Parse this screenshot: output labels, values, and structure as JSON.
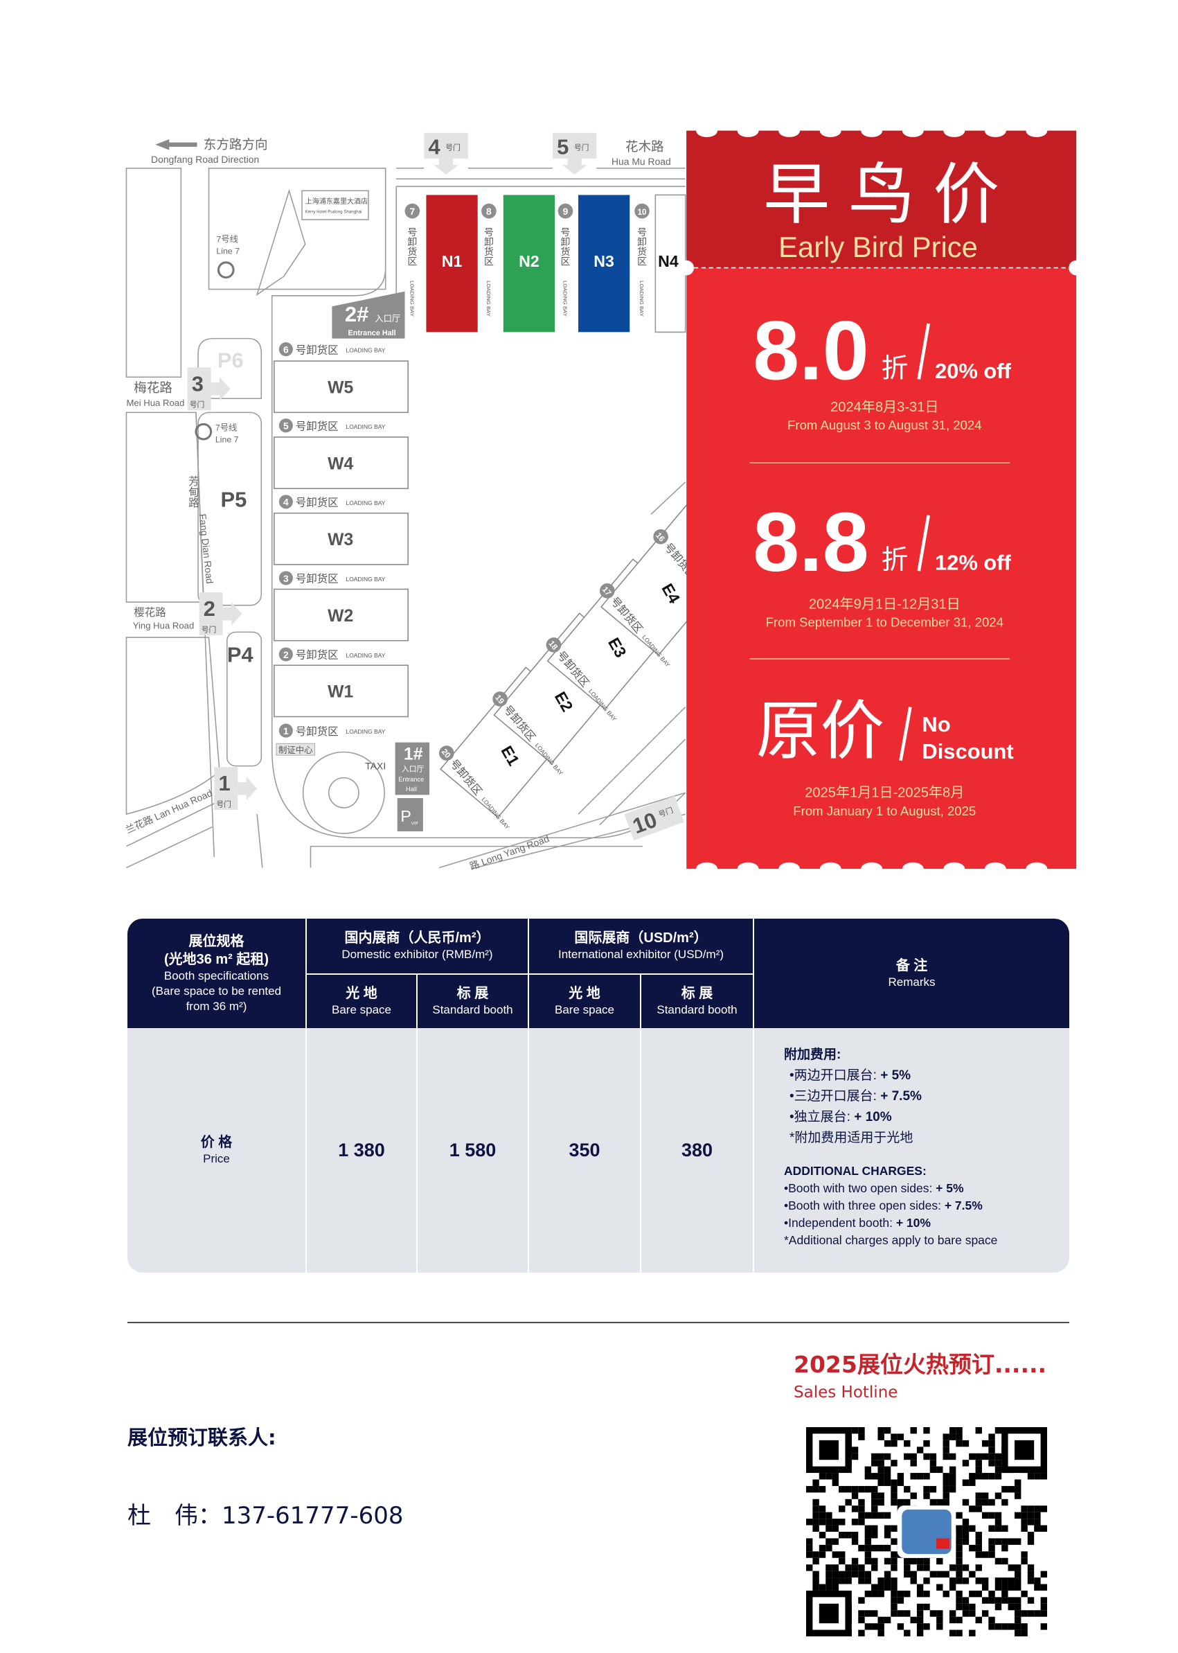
{
  "map": {
    "direction": {
      "zh": "东方路方向",
      "en": "Dongfang Road Direction"
    },
    "roads": {
      "hua_mu": {
        "zh": "花木路",
        "en": "Hua Mu Road"
      },
      "mei_hua": {
        "zh": "梅花路",
        "en": "Mei Hua Road"
      },
      "ying_hua": {
        "zh": "樱花路",
        "en": "Ying Hua Road"
      },
      "lan_hua": "兰花路 Lan Hua Road",
      "fang_dian_zh": "芳甸路",
      "fang_dian_en": "Fang Dian Road",
      "long_yang": "路  Long Yang Road"
    },
    "gate_suffix": "号门",
    "gates": [
      "1",
      "2",
      "3",
      "4",
      "5",
      "10"
    ],
    "hotel": {
      "zh": "上海浦东嘉里大酒店",
      "en": "Kerry Hotel Pudong Shanghai"
    },
    "metro": {
      "zh": "7号线",
      "en": "Line 7",
      "icon": "metro-icon"
    },
    "parking": [
      "P6",
      "P5",
      "P4"
    ],
    "entrance2": {
      "num": "2#",
      "zh": "入口厅",
      "en": "Entrance Hall"
    },
    "entrance1": {
      "num": "1#",
      "zh": "入口厅",
      "en": "Entrance",
      "en2": "Hall"
    },
    "vip_parking": {
      "p": "P",
      "sub": "VIP"
    },
    "taxi": "TAXI",
    "badge_center": "制证中心",
    "loading_zh": "号卸货区",
    "loading_en": "LOADING BAY",
    "north_halls": [
      {
        "name": "N1",
        "color": "#c31d24"
      },
      {
        "name": "N2",
        "color": "#2ea254"
      },
      {
        "name": "N3",
        "color": "#0b4a9a"
      },
      {
        "name": "N4",
        "color": "#ffffff"
      }
    ],
    "north_bays": [
      "7",
      "8",
      "9",
      "10"
    ],
    "west_halls": [
      "W5",
      "W4",
      "W3",
      "W2",
      "W1"
    ],
    "west_bays": [
      "6",
      "5",
      "4",
      "3",
      "2",
      "1"
    ],
    "east_halls": [
      "E1",
      "E2",
      "E3",
      "E4"
    ],
    "east_bays": [
      "20",
      "19",
      "18",
      "17",
      "16"
    ]
  },
  "promo": {
    "title_zh": "早 鸟 价",
    "title_en": "Early Bird Price",
    "colors": {
      "top": "#c41e25",
      "body": "#ec2a32",
      "gold": "#f5dfa2"
    },
    "tiers": [
      {
        "value": "8.0",
        "unit": "折",
        "en": "20% off",
        "date_zh": "2024年8月3-31日",
        "date_en": "From August 3 to August 31, 2024"
      },
      {
        "value": "8.8",
        "unit": "折",
        "en": "12% off",
        "date_zh": "2024年9月1日-12月31日",
        "date_en": "From September 1 to December 31, 2024"
      },
      {
        "value": "原价",
        "en_line1": "No",
        "en_line2": "Discount",
        "date_zh": "2025年1月1日-2025年8月",
        "date_en": "From January 1 to August, 2025"
      }
    ]
  },
  "table": {
    "spec_header": {
      "zh1": "展位规格",
      "zh2": "(光地36 m² 起租)",
      "en1": "Booth specifications",
      "en2": "(Bare space to be rented",
      "en3": "from 36 m²)"
    },
    "domestic": {
      "zh": "国内展商（人民币/m²）",
      "en": "Domestic exhibitor (RMB/m²)"
    },
    "international": {
      "zh": "国际展商（USD/m²）",
      "en": "International exhibitor (USD/m²)"
    },
    "sub": [
      {
        "zh": "光 地",
        "en": "Bare space"
      },
      {
        "zh": "标 展",
        "en": "Standard booth"
      },
      {
        "zh": "光 地",
        "en": "Bare space"
      },
      {
        "zh": "标 展",
        "en": "Standard booth"
      }
    ],
    "remarks_header": {
      "zh": "备 注",
      "en": "Remarks"
    },
    "row_label": {
      "zh": "价 格",
      "en": "Price"
    },
    "prices": [
      "1 380",
      "1 580",
      "350",
      "380"
    ],
    "remarks": {
      "zh_title": "附加费用:",
      "zh_items": [
        {
          "label": "•两边开口展台: ",
          "value": "+ 5%"
        },
        {
          "label": "•三边开口展台: ",
          "value": "+ 7.5%"
        },
        {
          "label": "•独立展台: ",
          "value": "+ 10%"
        }
      ],
      "zh_note": "*附加费用适用于光地",
      "en_title": "ADDITIONAL CHARGES:",
      "en_items": [
        {
          "label": "•Booth with two open sides: ",
          "value": "+ 5%"
        },
        {
          "label": "•Booth with three open sides: ",
          "value": "+ 7.5%"
        },
        {
          "label": "•Independent booth: ",
          "value": "+ 10%"
        }
      ],
      "en_note": "*Additional charges apply to bare space"
    }
  },
  "contact": {
    "hotline_zh": "2025展位火热预订......",
    "hotline_en": "Sales Hotline",
    "label": "展位预订联系人:",
    "person": "杜　伟：",
    "phone": "137-61777-608",
    "qr": "qr-code"
  }
}
